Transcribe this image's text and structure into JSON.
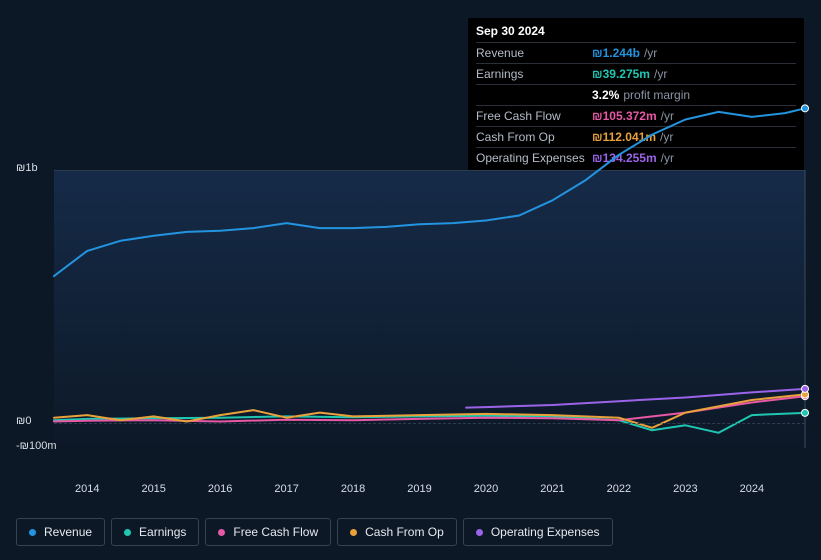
{
  "background_color": "#0d1826",
  "tooltip": {
    "date": "Sep 30 2024",
    "rows": [
      {
        "label": "Revenue",
        "value": "₪1.244b",
        "unit": "/yr",
        "color": "#2394df"
      },
      {
        "label": "Earnings",
        "value": "₪39.275m",
        "unit": "/yr",
        "color": "#1fc7b2"
      },
      {
        "label": "",
        "value": "3.2%",
        "unit": "profit margin",
        "color": "#ffffff"
      },
      {
        "label": "Free Cash Flow",
        "value": "₪105.372m",
        "unit": "/yr",
        "color": "#e758a5"
      },
      {
        "label": "Cash From Op",
        "value": "₪112.041m",
        "unit": "/yr",
        "color": "#e9a23b"
      },
      {
        "label": "Operating Expenses",
        "value": "₪134.255m",
        "unit": "/yr",
        "color": "#9b64e8"
      }
    ]
  },
  "chart": {
    "type": "line",
    "x_years": [
      2014,
      2015,
      2016,
      2017,
      2018,
      2019,
      2020,
      2021,
      2022,
      2023,
      2024
    ],
    "ylim": [
      -100,
      1000
    ],
    "y_ticks": [
      {
        "v": 1000,
        "label": "₪1b"
      },
      {
        "v": 0,
        "label": "₪0"
      },
      {
        "v": -100,
        "label": "-₪100m"
      }
    ],
    "grid_color": "#2e3c4f",
    "plot_bg_top": "#172e4e",
    "plot_bg_bottom": "#0d1a2a",
    "line_width": 2,
    "label_fontsize": 11,
    "label_color": "#d7dde6",
    "series": [
      {
        "name": "Revenue",
        "color": "#2394df",
        "x": [
          2013.5,
          2014,
          2014.5,
          2015,
          2015.5,
          2016,
          2016.5,
          2017,
          2017.5,
          2018,
          2018.5,
          2019,
          2019.5,
          2020,
          2020.5,
          2021,
          2021.5,
          2022,
          2022.5,
          2023,
          2023.5,
          2024,
          2024.5,
          2024.8
        ],
        "y": [
          580,
          680,
          720,
          740,
          755,
          760,
          770,
          790,
          770,
          770,
          775,
          785,
          790,
          800,
          820,
          880,
          960,
          1060,
          1140,
          1200,
          1230,
          1210,
          1225,
          1244
        ]
      },
      {
        "name": "Earnings",
        "color": "#1fc7b2",
        "x": [
          2013.5,
          2014,
          2015,
          2016,
          2017,
          2018,
          2019,
          2020,
          2021,
          2022,
          2022.5,
          2023,
          2023.5,
          2024,
          2024.8
        ],
        "y": [
          10,
          15,
          18,
          20,
          25,
          22,
          25,
          28,
          25,
          10,
          -30,
          -10,
          -40,
          30,
          39
        ]
      },
      {
        "name": "Free Cash Flow",
        "color": "#e758a5",
        "x": [
          2013.5,
          2014,
          2015,
          2016,
          2017,
          2018,
          2019,
          2020,
          2021,
          2022,
          2023,
          2024,
          2024.8
        ],
        "y": [
          5,
          8,
          10,
          5,
          12,
          10,
          15,
          20,
          18,
          10,
          40,
          80,
          105
        ]
      },
      {
        "name": "Cash From Op",
        "color": "#e9a23b",
        "x": [
          2013.5,
          2014,
          2014.5,
          2015,
          2015.5,
          2016,
          2016.5,
          2017,
          2017.5,
          2018,
          2019,
          2020,
          2021,
          2022,
          2022.5,
          2023,
          2024,
          2024.8
        ],
        "y": [
          20,
          30,
          10,
          25,
          5,
          30,
          50,
          20,
          40,
          25,
          30,
          35,
          30,
          20,
          -20,
          40,
          90,
          112
        ]
      },
      {
        "name": "Operating Expenses",
        "color": "#9b64e8",
        "x": [
          2019.7,
          2020,
          2021,
          2022,
          2023,
          2024,
          2024.8
        ],
        "y": [
          60,
          62,
          70,
          85,
          100,
          120,
          134
        ]
      }
    ]
  },
  "legend": [
    {
      "label": "Revenue",
      "color": "#2394df"
    },
    {
      "label": "Earnings",
      "color": "#1fc7b2"
    },
    {
      "label": "Free Cash Flow",
      "color": "#e758a5"
    },
    {
      "label": "Cash From Op",
      "color": "#e9a23b"
    },
    {
      "label": "Operating Expenses",
      "color": "#9b64e8"
    }
  ]
}
